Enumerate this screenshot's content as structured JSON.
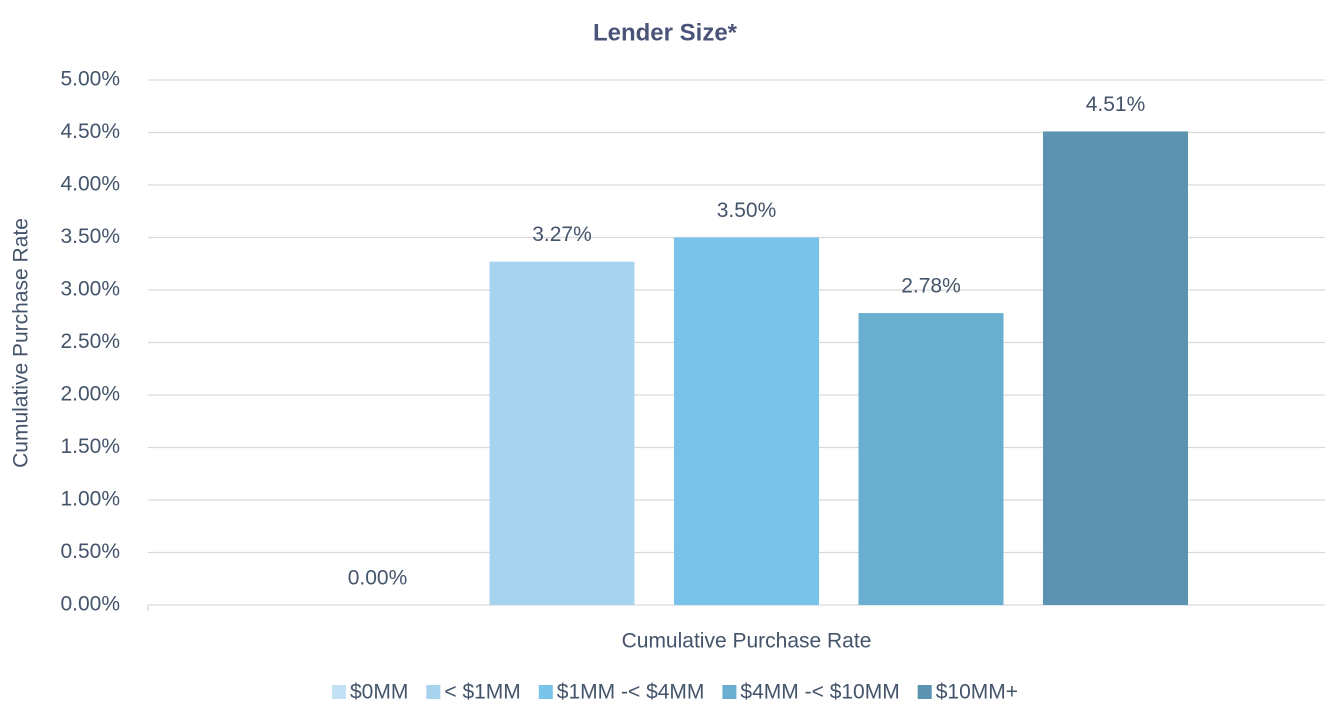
{
  "chart_data": {
    "type": "bar",
    "title": "Lender Size*",
    "ylabel": "Cumulative Purchase Rate",
    "categories": [
      "Cumulative Purchase Rate"
    ],
    "series": [
      {
        "name": "$0MM",
        "color": "#c3e1f4",
        "values": [
          0
        ],
        "value_labels": [
          "0.00%"
        ]
      },
      {
        "name": "< $1MM",
        "color": "#a8d3ef",
        "values": [
          3.27
        ],
        "value_labels": [
          "3.27%"
        ]
      },
      {
        "name": "$1MM -< $4MM",
        "color": "#79c3ea",
        "values": [
          3.5
        ],
        "value_labels": [
          "3.50%"
        ]
      },
      {
        "name": "$4MM -< $10MM",
        "color": "#6aaed0",
        "values": [
          2.78
        ],
        "value_labels": [
          "2.78%"
        ]
      },
      {
        "name": "$10MM+",
        "color": "#5b93b1",
        "values": [
          4.51
        ],
        "value_labels": [
          "4.51%"
        ]
      }
    ],
    "ylim": [
      0,
      5
    ],
    "yticks": [
      {
        "value": 0,
        "label": "0.00%"
      },
      {
        "value": 0.5,
        "label": "0.50%"
      },
      {
        "value": 1,
        "label": "1.00%"
      },
      {
        "value": 1.5,
        "label": "1.50%"
      },
      {
        "value": 2,
        "label": "2.00%"
      },
      {
        "value": 2.5,
        "label": "2.50%"
      },
      {
        "value": 3,
        "label": "3.00%"
      },
      {
        "value": 3.5,
        "label": "3.50%"
      },
      {
        "value": 4,
        "label": "4.00%"
      },
      {
        "value": 4.5,
        "label": "4.50%"
      },
      {
        "value": 5,
        "label": "5.00%"
      }
    ],
    "grid": true,
    "legend": "bottom"
  }
}
